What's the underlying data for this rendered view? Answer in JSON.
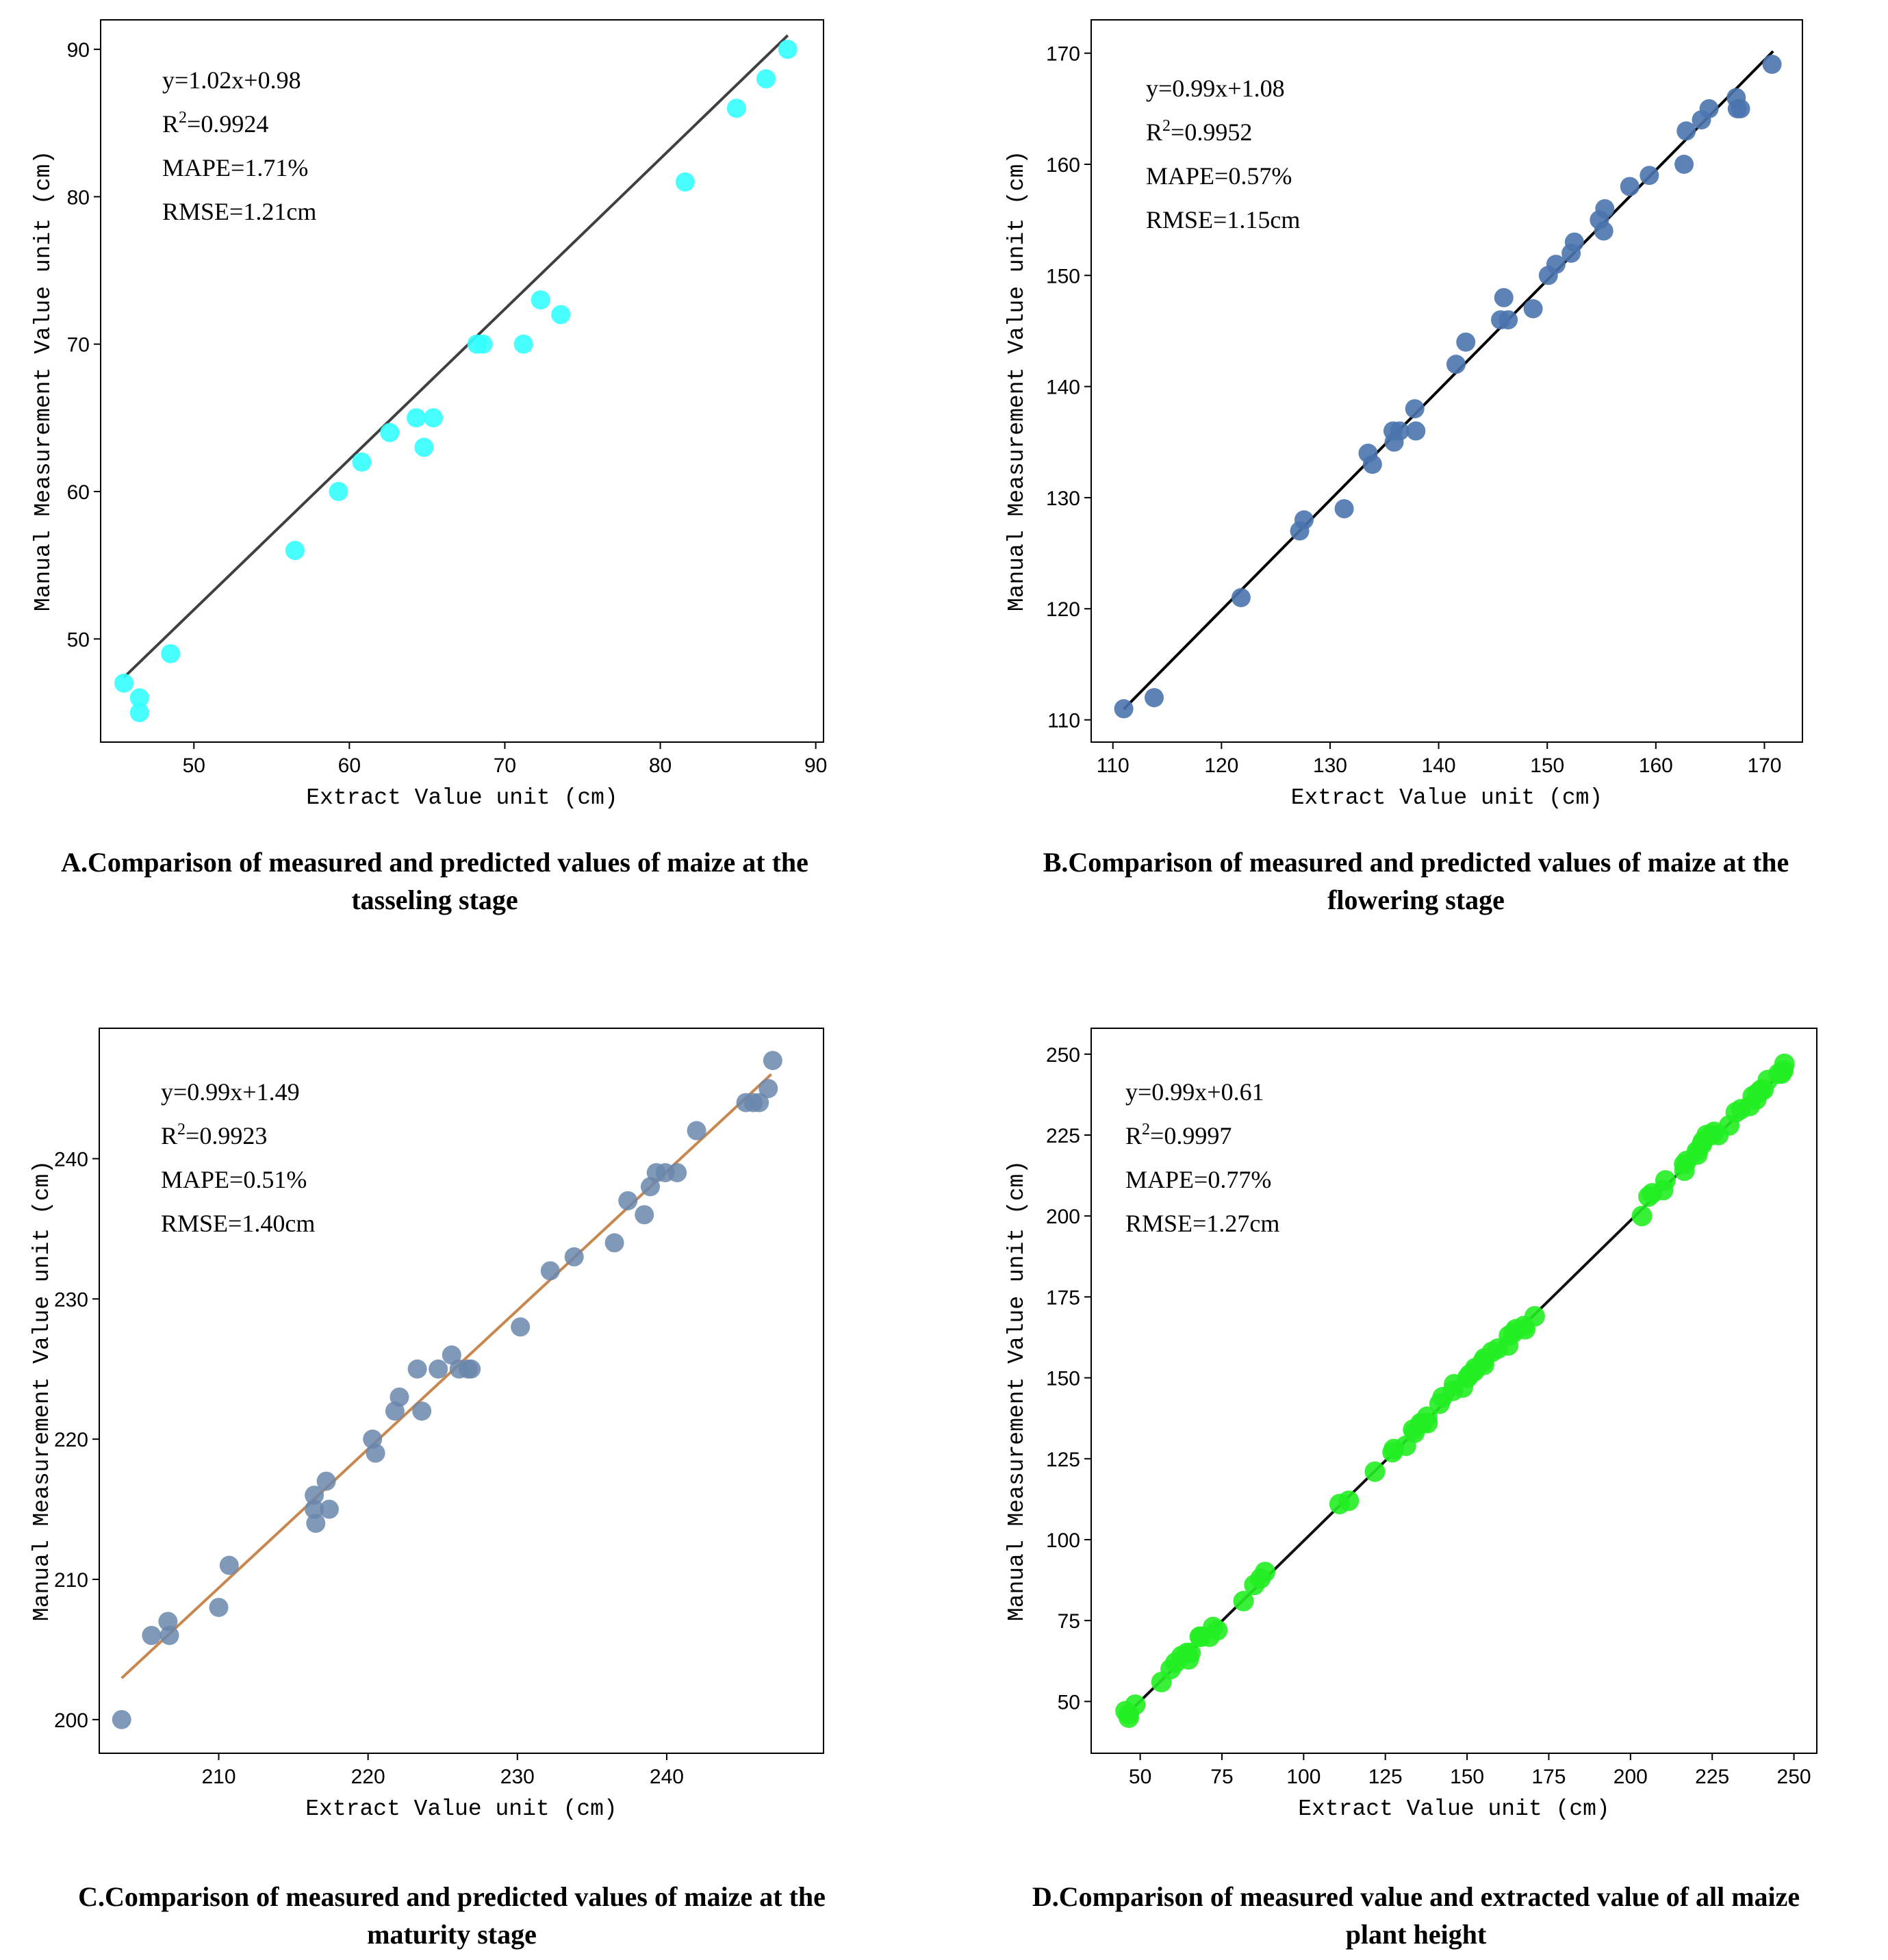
{
  "chart_data": [
    {
      "type": "scatter",
      "panel_id": "A",
      "caption_line1": "A.Comparison of measured and predicted values of maize at the",
      "caption_line2": "tasseling stage",
      "xlabel": "Extract Value unit (cm)",
      "ylabel": "Manual Measurement Value unit (cm)",
      "xlim": [
        44,
        90.5
      ],
      "ylim": [
        43,
        92
      ],
      "xticks": [
        50,
        60,
        70,
        80,
        90
      ],
      "yticks": [
        50,
        60,
        70,
        80,
        90
      ],
      "marker_color": "#33ffff",
      "line_color": "#404040",
      "fit": {
        "slope": 1.02,
        "intercept": 0.98,
        "x_range": [
          45.5,
          88.2
        ]
      },
      "stats": {
        "eq": "y=1.02x+0.98",
        "r2_prefix": "R",
        "r2_sup": "2",
        "r2_value": "=0.9924",
        "mape": "MAPE=1.71%",
        "rmse": "RMSE=1.21cm"
      },
      "points": [
        [
          45.5,
          47
        ],
        [
          46.5,
          46
        ],
        [
          46.5,
          45
        ],
        [
          48.5,
          49
        ],
        [
          56.5,
          56
        ],
        [
          59.3,
          60
        ],
        [
          60.8,
          62
        ],
        [
          62.6,
          64
        ],
        [
          64.3,
          65
        ],
        [
          64.8,
          63
        ],
        [
          65.4,
          65
        ],
        [
          68.2,
          70
        ],
        [
          68.6,
          70
        ],
        [
          71.2,
          70
        ],
        [
          72.3,
          73
        ],
        [
          73.6,
          72
        ],
        [
          81.6,
          81
        ],
        [
          84.9,
          86
        ],
        [
          86.8,
          88
        ],
        [
          88.2,
          90
        ]
      ]
    },
    {
      "type": "scatter",
      "panel_id": "B",
      "caption_line1": "B.Comparison of measured and predicted values of maize at the",
      "caption_line2": "flowering stage",
      "xlabel": "Extract Value unit (cm)",
      "ylabel": "Manual Measurement Value unit (cm)",
      "xlim": [
        108,
        173.5
      ],
      "ylim": [
        108,
        173
      ],
      "xticks": [
        110,
        120,
        130,
        140,
        150,
        160,
        170
      ],
      "yticks": [
        110,
        120,
        130,
        140,
        150,
        160,
        170
      ],
      "marker_color": "#4a74ae",
      "line_color": "#000000",
      "fit": {
        "slope": 0.99,
        "intercept": 1.08,
        "x_range": [
          111,
          170.8
        ]
      },
      "stats": {
        "eq": "y=0.99x+1.08",
        "r2_prefix": "R",
        "r2_sup": "2",
        "r2_value": "=0.9952",
        "mape": "MAPE=0.57%",
        "rmse": "RMSE=1.15cm"
      },
      "points": [
        [
          111,
          111
        ],
        [
          113.8,
          112
        ],
        [
          121.8,
          121
        ],
        [
          127.2,
          127
        ],
        [
          127.6,
          128
        ],
        [
          131.3,
          129
        ],
        [
          133.5,
          134
        ],
        [
          133.9,
          133
        ],
        [
          135.8,
          136
        ],
        [
          135.9,
          135
        ],
        [
          136.4,
          136
        ],
        [
          137.8,
          138
        ],
        [
          137.9,
          136
        ],
        [
          141.6,
          142
        ],
        [
          142.5,
          144
        ],
        [
          145.7,
          146
        ],
        [
          146,
          148
        ],
        [
          146.4,
          146
        ],
        [
          148.7,
          147
        ],
        [
          150.1,
          150
        ],
        [
          150.8,
          151
        ],
        [
          152.2,
          152
        ],
        [
          152.5,
          153
        ],
        [
          154.8,
          155
        ],
        [
          155.2,
          154
        ],
        [
          155.3,
          156
        ],
        [
          157.6,
          158
        ],
        [
          159.4,
          159
        ],
        [
          162.6,
          160
        ],
        [
          162.8,
          163
        ],
        [
          164.2,
          164
        ],
        [
          164.9,
          165
        ],
        [
          167.4,
          166
        ],
        [
          167.5,
          165
        ],
        [
          167.8,
          165
        ],
        [
          170.7,
          169
        ]
      ]
    },
    {
      "type": "scatter",
      "panel_id": "C",
      "caption_line1": "C.Comparison of measured and predicted values of maize at the",
      "caption_line2": "maturity stage",
      "xlabel": "Extract Value unit (cm)",
      "ylabel": "Manual Measurement Value unit (cm)",
      "xlim": [
        202,
        250.5
      ],
      "ylim": [
        197.6,
        249.3
      ],
      "xticks": [
        210,
        220,
        230,
        240
      ],
      "yticks": [
        200,
        210,
        220,
        230,
        240
      ],
      "marker_color": "#6a87ab",
      "line_color": "#c7874f",
      "fit": {
        "slope": 0.99,
        "intercept": 1.49,
        "x_range": [
          203.5,
          247
        ]
      },
      "stats": {
        "eq": "y=0.99x+1.49",
        "r2_prefix": "R",
        "r2_sup": "2",
        "r2_value": "=0.9923",
        "mape": "MAPE=0.51%",
        "rmse": "RMSE=1.40cm"
      },
      "points": [
        [
          203.5,
          200
        ],
        [
          205.5,
          206
        ],
        [
          206.6,
          207
        ],
        [
          206.7,
          206
        ],
        [
          210,
          208
        ],
        [
          210.7,
          211
        ],
        [
          216.4,
          216
        ],
        [
          216.4,
          215
        ],
        [
          216.5,
          214
        ],
        [
          217.2,
          217
        ],
        [
          217.4,
          215
        ],
        [
          220.3,
          220
        ],
        [
          220.5,
          219
        ],
        [
          221.8,
          222
        ],
        [
          222.1,
          223
        ],
        [
          223.3,
          225
        ],
        [
          223.6,
          222
        ],
        [
          224.7,
          225
        ],
        [
          225.6,
          226
        ],
        [
          226.1,
          225
        ],
        [
          226.7,
          225
        ],
        [
          226.9,
          225
        ],
        [
          230.2,
          228
        ],
        [
          232.2,
          232
        ],
        [
          233.8,
          233
        ],
        [
          236.5,
          234
        ],
        [
          237.4,
          237
        ],
        [
          238.5,
          236
        ],
        [
          238.9,
          238
        ],
        [
          239.3,
          239
        ],
        [
          239.9,
          239
        ],
        [
          240.7,
          239
        ],
        [
          242,
          242
        ],
        [
          245.3,
          244
        ],
        [
          245.8,
          244
        ],
        [
          246.2,
          244
        ],
        [
          246.8,
          245
        ],
        [
          247.1,
          247
        ]
      ]
    },
    {
      "type": "scatter",
      "panel_id": "D",
      "caption_line1": "D.Comparison of measured value and extracted value of all maize",
      "caption_line2": "plant height",
      "xlabel": "Extract Value unit (cm)",
      "ylabel": "Manual Measurement Value unit (cm)",
      "xlim": [
        35,
        257
      ],
      "ylim": [
        34,
        258
      ],
      "xticks": [
        50,
        75,
        100,
        125,
        150,
        175,
        200,
        225,
        250
      ],
      "yticks": [
        50,
        75,
        100,
        125,
        150,
        175,
        200,
        225,
        250
      ],
      "marker_color": "#22ee22",
      "line_color": "#111111",
      "fit": {
        "slope": 0.99,
        "intercept": 0.61,
        "x_range": [
          45.5,
          247
        ]
      },
      "stats": {
        "eq": "y=0.99x+0.61",
        "r2_prefix": "R",
        "r2_sup": "2",
        "r2_value": "=0.9997",
        "mape": "MAPE=0.77%",
        "rmse": "RMSE=1.27cm"
      },
      "points": [
        [
          45.5,
          47
        ],
        [
          46.5,
          46
        ],
        [
          46.5,
          45
        ],
        [
          48.5,
          49
        ],
        [
          56.5,
          56
        ],
        [
          59.3,
          60
        ],
        [
          60.8,
          62
        ],
        [
          62.6,
          64
        ],
        [
          64.3,
          65
        ],
        [
          64.8,
          63
        ],
        [
          65.4,
          65
        ],
        [
          68.2,
          70
        ],
        [
          68.6,
          70
        ],
        [
          71.2,
          70
        ],
        [
          72.3,
          73
        ],
        [
          73.6,
          72
        ],
        [
          81.6,
          81
        ],
        [
          84.9,
          86
        ],
        [
          86.8,
          88
        ],
        [
          88.2,
          90
        ],
        [
          111,
          111
        ],
        [
          113.8,
          112
        ],
        [
          121.8,
          121
        ],
        [
          127.2,
          127
        ],
        [
          127.6,
          128
        ],
        [
          131.3,
          129
        ],
        [
          133.5,
          134
        ],
        [
          133.9,
          133
        ],
        [
          135.8,
          136
        ],
        [
          136.4,
          136
        ],
        [
          137.8,
          138
        ],
        [
          137.9,
          136
        ],
        [
          141.6,
          142
        ],
        [
          142.5,
          144
        ],
        [
          145.7,
          146
        ],
        [
          146,
          148
        ],
        [
          148.7,
          147
        ],
        [
          150.1,
          150
        ],
        [
          150.8,
          151
        ],
        [
          152.2,
          152
        ],
        [
          152.5,
          153
        ],
        [
          154.8,
          155
        ],
        [
          155.2,
          154
        ],
        [
          155.3,
          156
        ],
        [
          157.6,
          158
        ],
        [
          159.4,
          159
        ],
        [
          162.6,
          160
        ],
        [
          162.8,
          163
        ],
        [
          164.2,
          164
        ],
        [
          164.9,
          165
        ],
        [
          167.4,
          166
        ],
        [
          167.8,
          165
        ],
        [
          170.7,
          169
        ],
        [
          203.5,
          200
        ],
        [
          205.5,
          206
        ],
        [
          206.6,
          207
        ],
        [
          210,
          208
        ],
        [
          210.7,
          211
        ],
        [
          216.4,
          216
        ],
        [
          216.5,
          214
        ],
        [
          217.2,
          217
        ],
        [
          220.3,
          220
        ],
        [
          220.5,
          219
        ],
        [
          221.8,
          222
        ],
        [
          222.1,
          223
        ],
        [
          223.3,
          225
        ],
        [
          224.7,
          225
        ],
        [
          225.6,
          226
        ],
        [
          226.9,
          225
        ],
        [
          230.2,
          228
        ],
        [
          232.2,
          232
        ],
        [
          233.8,
          233
        ],
        [
          236.5,
          234
        ],
        [
          237.4,
          237
        ],
        [
          238.5,
          236
        ],
        [
          238.9,
          238
        ],
        [
          239.9,
          239
        ],
        [
          240.7,
          239
        ],
        [
          242,
          242
        ],
        [
          245.3,
          244
        ],
        [
          246.2,
          244
        ],
        [
          246.8,
          245
        ],
        [
          247.1,
          247
        ]
      ]
    }
  ]
}
